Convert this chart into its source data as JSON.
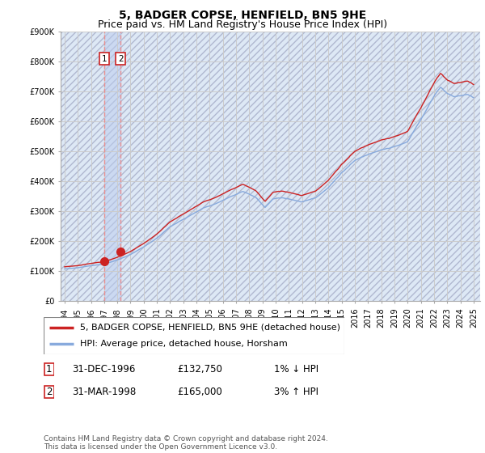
{
  "title": "5, BADGER COPSE, HENFIELD, BN5 9HE",
  "subtitle": "Price paid vs. HM Land Registry's House Price Index (HPI)",
  "ylim": [
    0,
    900000
  ],
  "yticks": [
    0,
    100000,
    200000,
    300000,
    400000,
    500000,
    600000,
    700000,
    800000,
    900000
  ],
  "ytick_labels": [
    "£0",
    "£100K",
    "£200K",
    "£300K",
    "£400K",
    "£500K",
    "£600K",
    "£700K",
    "£800K",
    "£900K"
  ],
  "xlim_start": 1993.7,
  "xlim_end": 2025.5,
  "xtick_years": [
    1994,
    1995,
    1996,
    1997,
    1998,
    1999,
    2000,
    2001,
    2002,
    2003,
    2004,
    2005,
    2006,
    2007,
    2008,
    2009,
    2010,
    2011,
    2012,
    2013,
    2014,
    2015,
    2016,
    2017,
    2018,
    2019,
    2020,
    2021,
    2022,
    2023,
    2024,
    2025
  ],
  "hpi_line_color": "#88aadd",
  "price_line_color": "#cc2222",
  "dot_color": "#cc2222",
  "hatch_facecolor": "#dde8f5",
  "grid_color": "#cccccc",
  "vline_color": "#ee8888",
  "transaction1": {
    "date_num": 1997.0,
    "price": 132750,
    "label": "1"
  },
  "transaction2": {
    "date_num": 1998.25,
    "price": 165000,
    "label": "2"
  },
  "legend_label1": "5, BADGER COPSE, HENFIELD, BN5 9HE (detached house)",
  "legend_label2": "HPI: Average price, detached house, Horsham",
  "table_row1": [
    "1",
    "31-DEC-1996",
    "£132,750",
    "1% ↓ HPI"
  ],
  "table_row2": [
    "2",
    "31-MAR-1998",
    "£165,000",
    "3% ↑ HPI"
  ],
  "footnote": "Contains HM Land Registry data © Crown copyright and database right 2024.\nThis data is licensed under the Open Government Licence v3.0.",
  "vline1_x": 1997.0,
  "vline2_x": 1998.25,
  "title_fontsize": 10,
  "subtitle_fontsize": 9,
  "tick_fontsize": 7,
  "legend_fontsize": 8,
  "table_fontsize": 8.5,
  "footnote_fontsize": 6.5
}
